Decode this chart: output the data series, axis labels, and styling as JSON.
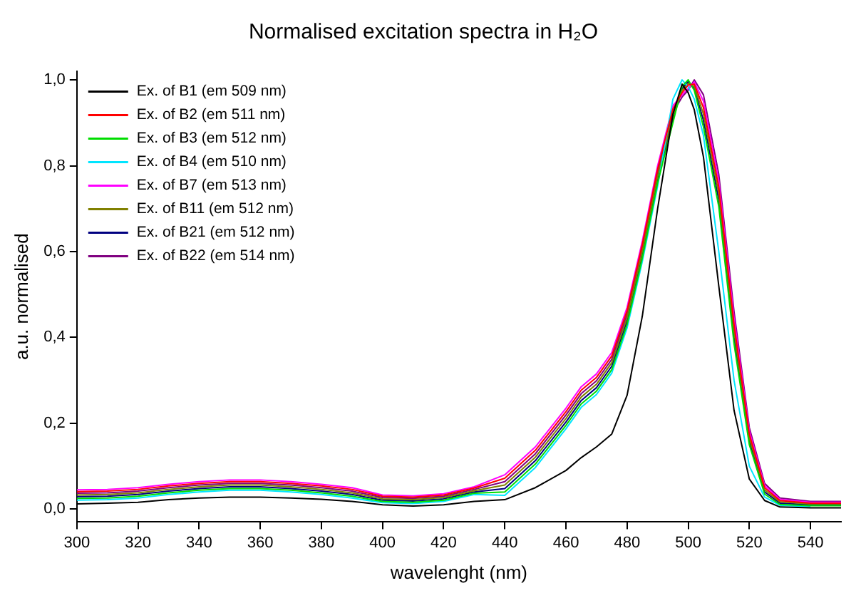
{
  "chart_data": {
    "type": "line",
    "title": "Normalised excitation spectra in H₂O",
    "xlabel": "wavelenght (nm)",
    "ylabel": "a.u. normalised",
    "x": [
      300,
      310,
      320,
      330,
      340,
      350,
      360,
      370,
      380,
      390,
      400,
      410,
      420,
      430,
      440,
      450,
      460,
      465,
      470,
      475,
      480,
      485,
      490,
      495,
      498,
      500,
      502,
      505,
      510,
      515,
      520,
      525,
      530,
      540,
      550
    ],
    "series": [
      {
        "name": "Ex. of B1 (em 509 nm)",
        "color": "#000000",
        "values": [
          0.012,
          0.014,
          0.016,
          0.022,
          0.026,
          0.028,
          0.028,
          0.026,
          0.023,
          0.018,
          0.01,
          0.007,
          0.01,
          0.018,
          0.022,
          0.05,
          0.09,
          0.12,
          0.145,
          0.175,
          0.265,
          0.45,
          0.7,
          0.92,
          0.99,
          0.97,
          0.93,
          0.82,
          0.52,
          0.23,
          0.07,
          0.02,
          0.005,
          0.003,
          0.003
        ]
      },
      {
        "name": "Ex. of B2 (em 511 nm)",
        "color": "#ff0000",
        "values": [
          0.041,
          0.042,
          0.046,
          0.054,
          0.06,
          0.064,
          0.064,
          0.06,
          0.054,
          0.046,
          0.03,
          0.028,
          0.033,
          0.049,
          0.072,
          0.137,
          0.227,
          0.277,
          0.307,
          0.357,
          0.462,
          0.617,
          0.792,
          0.932,
          0.97,
          0.988,
          0.99,
          0.935,
          0.75,
          0.43,
          0.174,
          0.05,
          0.02,
          0.014,
          0.014
        ]
      },
      {
        "name": "Ex. of B3 (em 512 nm)",
        "color": "#00dd00",
        "values": [
          0.025,
          0.026,
          0.03,
          0.038,
          0.044,
          0.048,
          0.048,
          0.044,
          0.038,
          0.03,
          0.018,
          0.016,
          0.021,
          0.037,
          0.04,
          0.105,
          0.195,
          0.245,
          0.275,
          0.325,
          0.43,
          0.585,
          0.76,
          0.9,
          0.985,
          1.0,
          0.975,
          0.89,
          0.705,
          0.385,
          0.15,
          0.035,
          0.011,
          0.008,
          0.008
        ]
      },
      {
        "name": "Ex. of B4 (em 510 nm)",
        "color": "#00e5ff",
        "values": [
          0.021,
          0.022,
          0.026,
          0.034,
          0.04,
          0.044,
          0.044,
          0.04,
          0.034,
          0.026,
          0.015,
          0.013,
          0.018,
          0.034,
          0.032,
          0.097,
          0.187,
          0.237,
          0.267,
          0.317,
          0.422,
          0.577,
          0.752,
          0.955,
          1.0,
          0.984,
          0.955,
          0.87,
          0.6,
          0.3,
          0.1,
          0.028,
          0.009,
          0.006,
          null
        ]
      },
      {
        "name": "Ex. of B7 (em 513 nm)",
        "color": "#ff00ff",
        "values": [
          0.045,
          0.046,
          0.05,
          0.058,
          0.064,
          0.068,
          0.068,
          0.064,
          0.058,
          0.05,
          0.033,
          0.031,
          0.036,
          0.052,
          0.08,
          0.145,
          0.235,
          0.285,
          0.315,
          0.365,
          0.47,
          0.625,
          0.8,
          0.94,
          0.965,
          0.98,
          0.995,
          0.95,
          0.765,
          0.445,
          0.182,
          0.055,
          0.023,
          0.016,
          0.016
        ]
      },
      {
        "name": "Ex. of B11 (em 512 nm)",
        "color": "#808000",
        "values": [
          0.033,
          0.034,
          0.038,
          0.046,
          0.052,
          0.056,
          0.056,
          0.052,
          0.046,
          0.038,
          0.024,
          0.022,
          0.027,
          0.043,
          0.056,
          0.121,
          0.211,
          0.261,
          0.291,
          0.341,
          0.446,
          0.601,
          0.776,
          0.916,
          0.975,
          0.992,
          0.985,
          0.92,
          0.735,
          0.415,
          0.166,
          0.045,
          0.017,
          0.012,
          0.012
        ]
      },
      {
        "name": "Ex. of B21 (em 512 nm)",
        "color": "#000080",
        "values": [
          0.029,
          0.03,
          0.034,
          0.042,
          0.048,
          0.052,
          0.052,
          0.048,
          0.042,
          0.034,
          0.021,
          0.019,
          0.024,
          0.04,
          0.048,
          0.113,
          0.203,
          0.253,
          0.283,
          0.333,
          0.438,
          0.593,
          0.768,
          0.908,
          0.98,
          0.996,
          0.98,
          0.905,
          0.72,
          0.4,
          0.158,
          0.04,
          0.014,
          0.01,
          0.01
        ]
      },
      {
        "name": "Ex. of B22 (em 514 nm)",
        "color": "#800080",
        "values": [
          0.037,
          0.038,
          0.042,
          0.05,
          0.056,
          0.06,
          0.06,
          0.056,
          0.05,
          0.042,
          0.027,
          0.025,
          0.03,
          0.046,
          0.064,
          0.129,
          0.219,
          0.269,
          0.299,
          0.349,
          0.454,
          0.609,
          0.784,
          0.924,
          0.96,
          0.976,
          1.0,
          0.965,
          0.78,
          0.46,
          0.19,
          0.06,
          0.026,
          0.018,
          0.018
        ]
      }
    ],
    "xlim": [
      300,
      550
    ],
    "xticks": [
      300,
      320,
      340,
      360,
      380,
      400,
      420,
      440,
      460,
      480,
      500,
      520,
      540
    ],
    "ylim": [
      -0.03,
      1.02
    ],
    "yticks": [
      {
        "value": 0,
        "label": "0,0"
      },
      {
        "value": 0.2,
        "label": "0,2"
      },
      {
        "value": 0.4,
        "label": "0,4"
      },
      {
        "value": 0.6,
        "label": "0,6"
      },
      {
        "value": 0.8,
        "label": "0,8"
      },
      {
        "value": 1,
        "label": "1,0"
      }
    ],
    "grid": false,
    "legend": "top left",
    "marker": "none",
    "line_style": "solid"
  }
}
